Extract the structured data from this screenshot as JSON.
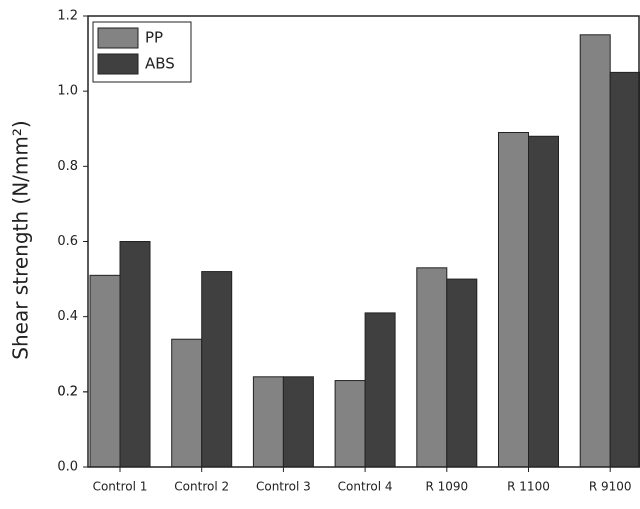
{
  "chart_data": {
    "type": "bar",
    "y_label": "Shear strength (N/mm²)",
    "categories": [
      "Control 1",
      "Control 2",
      "Control 3",
      "Control 4",
      "R 1090",
      "R 1100",
      "R 9100"
    ],
    "series": [
      {
        "name": "PP",
        "color": "#838383",
        "values": [
          0.51,
          0.34,
          0.24,
          0.23,
          0.53,
          0.89,
          1.15
        ]
      },
      {
        "name": "ABS",
        "color": "#404040",
        "values": [
          0.6,
          0.52,
          0.24,
          0.41,
          0.5,
          0.88,
          1.05
        ]
      }
    ],
    "ylim": [
      0,
      1.2
    ],
    "yticks": [
      {
        "value": 0,
        "label": "0.0"
      },
      0.2,
      0.4,
      0.6,
      0.8,
      {
        "value": 1,
        "label": "1.0"
      },
      0.2,
      {
        "value": 1.2,
        "label": "1.2"
      }
    ],
    "legend": "top-left"
  }
}
